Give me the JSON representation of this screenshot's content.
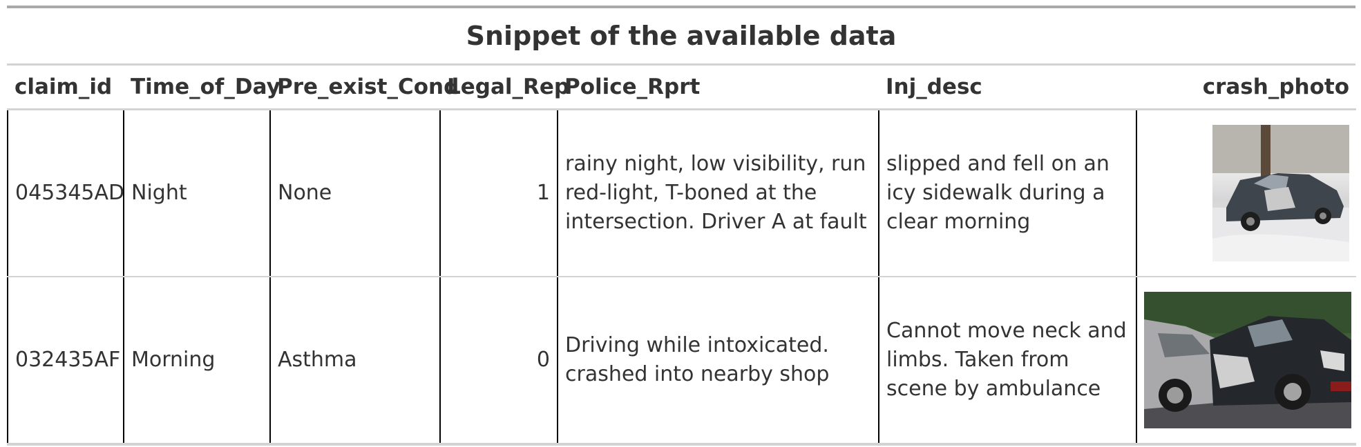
{
  "table": {
    "title": "Snippet of the available data",
    "columns": [
      "claim_id",
      "Time_of_Day",
      "Pre_exist_Cond",
      "Legal_Rep",
      "Police_Rprt",
      "Inj_desc",
      "crash_photo"
    ],
    "rows": [
      {
        "claim_id": "045345AD",
        "time_of_day": "Night",
        "pre_exist_cond": "None",
        "legal_rep": "1",
        "police_rprt": "rainy night, low visibility, run red-light, T-boned at the intersection. Driver A at fault",
        "inj_desc": "slipped and fell on an icy sidewalk during a clear morning",
        "crash_photo_icon": "crashed-car-snow-photo"
      },
      {
        "claim_id": "032435AF",
        "time_of_day": "Morning",
        "pre_exist_cond": "Asthma",
        "legal_rep": "0",
        "police_rprt": "Driving while intoxicated. crashed into nearby shop",
        "inj_desc": "Cannot move neck and limbs. Taken from scene by ambulance",
        "crash_photo_icon": "crashed-car-road-photo"
      }
    ]
  }
}
